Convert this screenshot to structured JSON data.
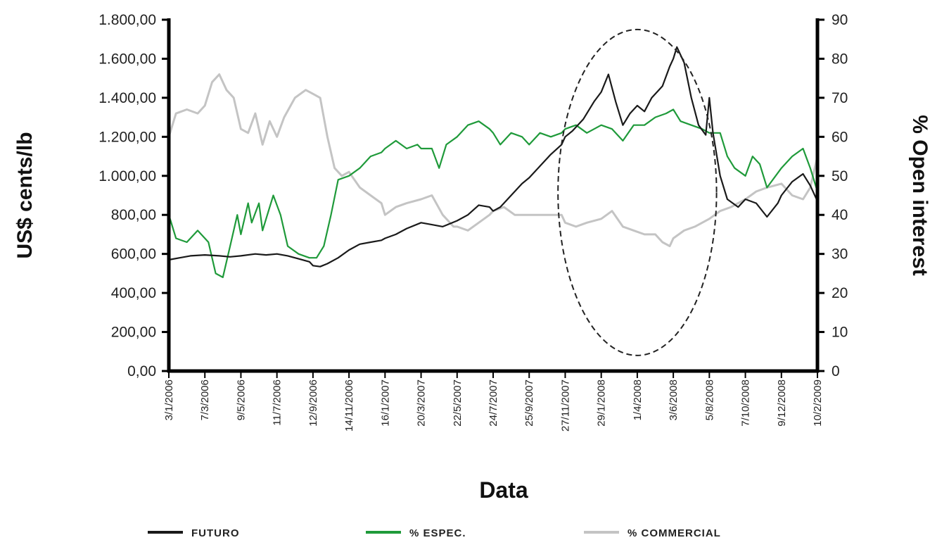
{
  "chart_data": {
    "type": "line",
    "title": "",
    "xlabel": "Data",
    "ylabel_left": "US$ cents/lb",
    "ylabel_right": "% Open interest",
    "ylim_left": [
      0,
      1800
    ],
    "ylim_right": [
      0,
      90
    ],
    "yticks_left": [
      "0,00",
      "200,00",
      "400,00",
      "600,00",
      "800,00",
      "1.000,00",
      "1.200,00",
      "1.400,00",
      "1.600,00",
      "1.800,00"
    ],
    "yticks_right": [
      "0",
      "10",
      "20",
      "30",
      "40",
      "50",
      "60",
      "70",
      "80",
      "90"
    ],
    "xticks": [
      "3/1/2006",
      "7/3/2006",
      "9/5/2006",
      "11/7/2006",
      "12/9/2006",
      "14/11/2006",
      "16/1/2007",
      "20/3/2007",
      "22/5/2007",
      "24/7/2007",
      "25/9/2007",
      "27/11/2007",
      "29/1/2008",
      "1/4/2008",
      "3/6/2008",
      "5/8/2008",
      "7/10/2008",
      "9/12/2008",
      "10/2/2009"
    ],
    "grid": false,
    "legend_position": "bottom",
    "series": [
      {
        "name": "FUTURO",
        "axis": "left",
        "color": "#1a1a1a",
        "values": [
          [
            0,
            570
          ],
          [
            0.3,
            580
          ],
          [
            0.6,
            590
          ],
          [
            1.0,
            595
          ],
          [
            1.4,
            590
          ],
          [
            1.7,
            585
          ],
          [
            2.0,
            590
          ],
          [
            2.4,
            600
          ],
          [
            2.7,
            595
          ],
          [
            3.0,
            600
          ],
          [
            3.3,
            590
          ],
          [
            3.6,
            575
          ],
          [
            3.9,
            560
          ],
          [
            4.0,
            540
          ],
          [
            4.2,
            535
          ],
          [
            4.4,
            550
          ],
          [
            4.7,
            580
          ],
          [
            5.0,
            620
          ],
          [
            5.3,
            650
          ],
          [
            5.6,
            660
          ],
          [
            5.9,
            670
          ],
          [
            6.0,
            680
          ],
          [
            6.3,
            700
          ],
          [
            6.6,
            730
          ],
          [
            7.0,
            760
          ],
          [
            7.3,
            750
          ],
          [
            7.6,
            740
          ],
          [
            8.0,
            770
          ],
          [
            8.3,
            800
          ],
          [
            8.6,
            850
          ],
          [
            8.9,
            840
          ],
          [
            9.0,
            820
          ],
          [
            9.2,
            840
          ],
          [
            9.5,
            900
          ],
          [
            9.8,
            960
          ],
          [
            10.0,
            990
          ],
          [
            10.3,
            1050
          ],
          [
            10.6,
            1110
          ],
          [
            10.9,
            1160
          ],
          [
            11.0,
            1200
          ],
          [
            11.2,
            1230
          ],
          [
            11.5,
            1290
          ],
          [
            11.8,
            1380
          ],
          [
            12.0,
            1430
          ],
          [
            12.2,
            1520
          ],
          [
            12.4,
            1380
          ],
          [
            12.6,
            1260
          ],
          [
            12.8,
            1320
          ],
          [
            13.0,
            1360
          ],
          [
            13.2,
            1330
          ],
          [
            13.4,
            1400
          ],
          [
            13.7,
            1460
          ],
          [
            13.9,
            1560
          ],
          [
            14.0,
            1600
          ],
          [
            14.1,
            1660
          ],
          [
            14.3,
            1580
          ],
          [
            14.5,
            1400
          ],
          [
            14.7,
            1260
          ],
          [
            14.9,
            1210
          ],
          [
            15.0,
            1400
          ],
          [
            15.1,
            1220
          ],
          [
            15.3,
            1000
          ],
          [
            15.5,
            880
          ],
          [
            15.8,
            840
          ],
          [
            16.0,
            880
          ],
          [
            16.3,
            860
          ],
          [
            16.6,
            790
          ],
          [
            16.9,
            860
          ],
          [
            17.0,
            900
          ],
          [
            17.3,
            970
          ],
          [
            17.6,
            1010
          ],
          [
            17.8,
            950
          ],
          [
            18.0,
            870
          ]
        ]
      },
      {
        "name": "% ESPEC.",
        "axis": "right",
        "color": "#1f9a3a",
        "values": [
          [
            0,
            40
          ],
          [
            0.2,
            34
          ],
          [
            0.5,
            33
          ],
          [
            0.8,
            36
          ],
          [
            1.1,
            33
          ],
          [
            1.3,
            25
          ],
          [
            1.5,
            24
          ],
          [
            1.7,
            32
          ],
          [
            1.9,
            40
          ],
          [
            2.0,
            35
          ],
          [
            2.2,
            43
          ],
          [
            2.3,
            38
          ],
          [
            2.5,
            43
          ],
          [
            2.6,
            36
          ],
          [
            2.8,
            42
          ],
          [
            2.9,
            45
          ],
          [
            3.1,
            40
          ],
          [
            3.3,
            32
          ],
          [
            3.6,
            30
          ],
          [
            3.9,
            29
          ],
          [
            4.1,
            29
          ],
          [
            4.3,
            32
          ],
          [
            4.5,
            40
          ],
          [
            4.7,
            49
          ],
          [
            5.0,
            50
          ],
          [
            5.3,
            52
          ],
          [
            5.6,
            55
          ],
          [
            5.9,
            56
          ],
          [
            6.0,
            57
          ],
          [
            6.3,
            59
          ],
          [
            6.6,
            57
          ],
          [
            6.9,
            58
          ],
          [
            7.0,
            57
          ],
          [
            7.3,
            57
          ],
          [
            7.5,
            52
          ],
          [
            7.7,
            58
          ],
          [
            8.0,
            60
          ],
          [
            8.3,
            63
          ],
          [
            8.6,
            64
          ],
          [
            8.9,
            62
          ],
          [
            9.0,
            61
          ],
          [
            9.2,
            58
          ],
          [
            9.5,
            61
          ],
          [
            9.8,
            60
          ],
          [
            10.0,
            58
          ],
          [
            10.3,
            61
          ],
          [
            10.6,
            60
          ],
          [
            10.9,
            61
          ],
          [
            11.0,
            62
          ],
          [
            11.3,
            63
          ],
          [
            11.6,
            61
          ],
          [
            12.0,
            63
          ],
          [
            12.3,
            62
          ],
          [
            12.6,
            59
          ],
          [
            12.9,
            63
          ],
          [
            13.2,
            63
          ],
          [
            13.5,
            65
          ],
          [
            13.8,
            66
          ],
          [
            14.0,
            67
          ],
          [
            14.2,
            64
          ],
          [
            14.5,
            63
          ],
          [
            14.8,
            62
          ],
          [
            15.0,
            61
          ],
          [
            15.3,
            61
          ],
          [
            15.5,
            55
          ],
          [
            15.7,
            52
          ],
          [
            16.0,
            50
          ],
          [
            16.2,
            55
          ],
          [
            16.4,
            53
          ],
          [
            16.6,
            47
          ],
          [
            17.0,
            52
          ],
          [
            17.3,
            55
          ],
          [
            17.6,
            57
          ],
          [
            17.8,
            52
          ],
          [
            18.0,
            46
          ]
        ]
      },
      {
        "name": "% COMMERCIAL",
        "axis": "right",
        "color": "#c4c4c4",
        "values": [
          [
            0,
            60
          ],
          [
            0.2,
            66
          ],
          [
            0.5,
            67
          ],
          [
            0.8,
            66
          ],
          [
            1.0,
            68
          ],
          [
            1.2,
            74
          ],
          [
            1.4,
            76
          ],
          [
            1.6,
            72
          ],
          [
            1.8,
            70
          ],
          [
            2.0,
            62
          ],
          [
            2.2,
            61
          ],
          [
            2.4,
            66
          ],
          [
            2.6,
            58
          ],
          [
            2.8,
            64
          ],
          [
            3.0,
            60
          ],
          [
            3.2,
            65
          ],
          [
            3.5,
            70
          ],
          [
            3.8,
            72
          ],
          [
            4.0,
            71
          ],
          [
            4.2,
            70
          ],
          [
            4.4,
            60
          ],
          [
            4.6,
            52
          ],
          [
            4.8,
            50
          ],
          [
            5.0,
            51
          ],
          [
            5.3,
            47
          ],
          [
            5.6,
            45
          ],
          [
            5.9,
            43
          ],
          [
            6.0,
            40
          ],
          [
            6.3,
            42
          ],
          [
            6.6,
            43
          ],
          [
            7.0,
            44
          ],
          [
            7.3,
            45
          ],
          [
            7.6,
            40
          ],
          [
            7.9,
            37
          ],
          [
            8.0,
            37
          ],
          [
            8.3,
            36
          ],
          [
            8.6,
            38
          ],
          [
            8.9,
            40
          ],
          [
            9.0,
            41
          ],
          [
            9.3,
            42
          ],
          [
            9.6,
            40
          ],
          [
            10.0,
            40
          ],
          [
            10.3,
            40
          ],
          [
            10.6,
            40
          ],
          [
            10.9,
            40
          ],
          [
            11.0,
            38
          ],
          [
            11.3,
            37
          ],
          [
            11.6,
            38
          ],
          [
            12.0,
            39
          ],
          [
            12.3,
            41
          ],
          [
            12.6,
            37
          ],
          [
            12.9,
            36
          ],
          [
            13.2,
            35
          ],
          [
            13.5,
            35
          ],
          [
            13.7,
            33
          ],
          [
            13.9,
            32
          ],
          [
            14.0,
            34
          ],
          [
            14.3,
            36
          ],
          [
            14.6,
            37
          ],
          [
            15.0,
            39
          ],
          [
            15.3,
            41
          ],
          [
            15.6,
            42
          ],
          [
            16.0,
            44
          ],
          [
            16.3,
            46
          ],
          [
            16.6,
            47
          ],
          [
            17.0,
            48
          ],
          [
            17.3,
            45
          ],
          [
            17.6,
            44
          ],
          [
            17.8,
            47
          ],
          [
            18.0,
            55
          ]
        ]
      }
    ],
    "annotation": {
      "shape": "dashed-ellipse",
      "x_center": 13.0,
      "x_half_width": 2.2,
      "y_top_left": 1750,
      "y_bottom_left": 80
    }
  }
}
